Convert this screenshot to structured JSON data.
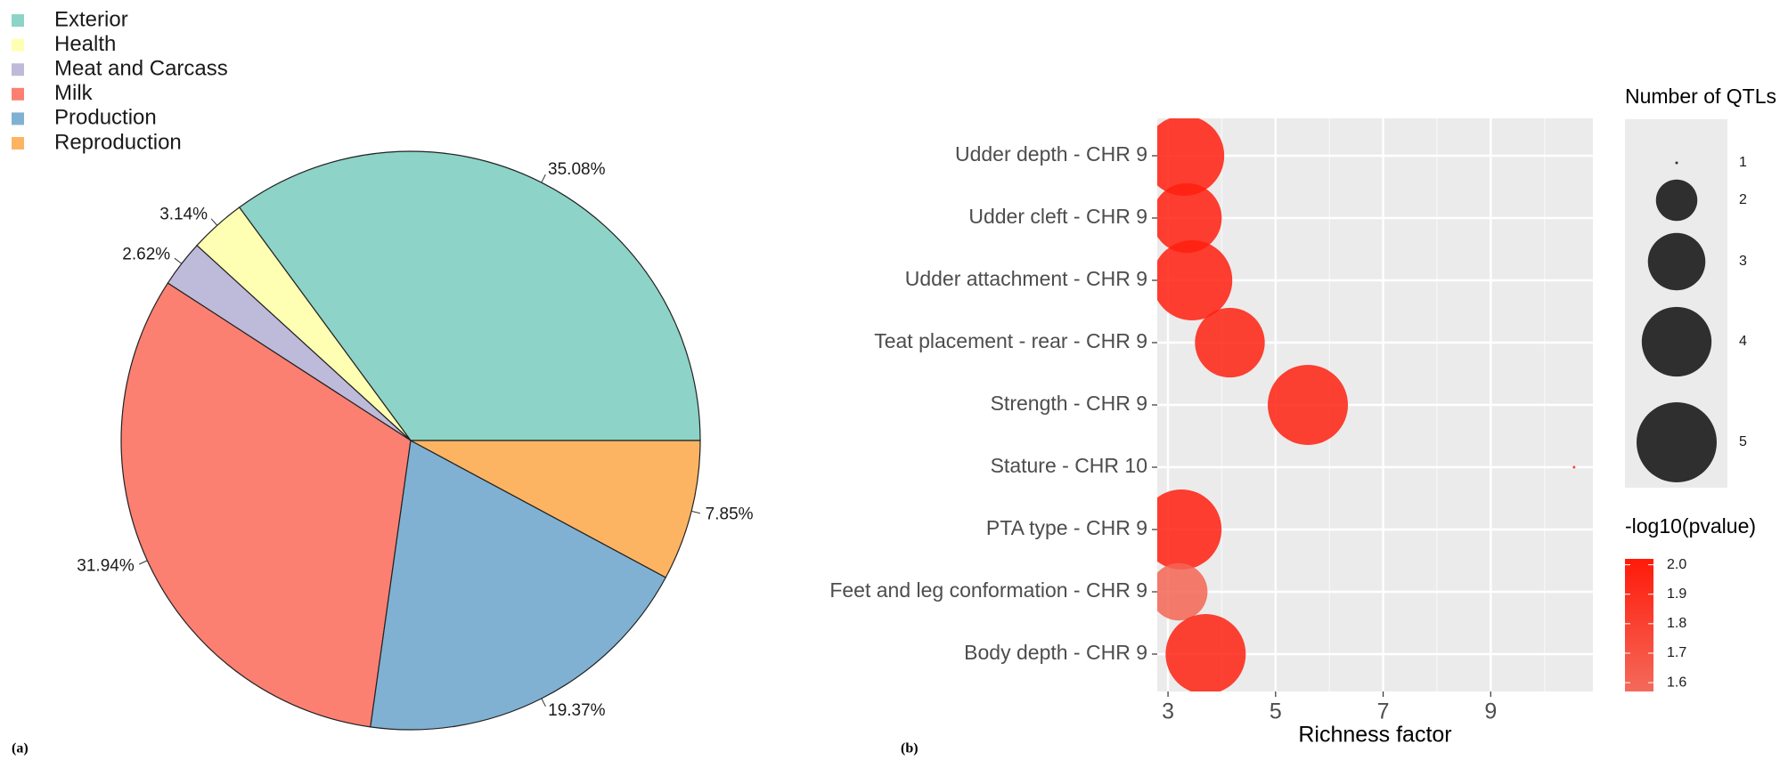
{
  "chart_data": [
    {
      "type": "pie",
      "panel_label": "(a)",
      "categories": [
        "Exterior",
        "Health",
        "Meat and Carcass",
        "Milk",
        "Production",
        "Reproduction"
      ],
      "values": [
        35.08,
        3.14,
        2.62,
        31.94,
        19.37,
        7.85
      ],
      "value_labels": [
        "35.08%",
        "3.14%",
        "2.62%",
        "31.94%",
        "19.37%",
        "7.85%"
      ],
      "colors": [
        "#8dd3c7",
        "#ffffb3",
        "#bebada",
        "#fb8072",
        "#80b1d3",
        "#fdb462"
      ]
    },
    {
      "type": "bubble",
      "panel_label": "(b)",
      "categories": [
        "Udder depth - CHR 9",
        "Udder cleft - CHR 9",
        "Udder attachment - CHR 9",
        "Teat placement - rear - CHR 9",
        "Strength - CHR 9",
        "Stature - CHR 10",
        "PTA type - CHR 9",
        "Feet and leg conformation - CHR 9",
        "Body depth - CHR 9"
      ],
      "x": [
        3.3,
        3.35,
        3.45,
        4.15,
        5.6,
        10.55,
        3.25,
        3.2,
        3.7
      ],
      "sizes": [
        5,
        4,
        5,
        4,
        5,
        1,
        5,
        3,
        5
      ],
      "color_values": [
        2.0,
        2.0,
        2.0,
        1.98,
        1.98,
        2.0,
        2.0,
        1.6,
        1.98
      ],
      "xlabel": "Richness factor",
      "xlim": [
        2.8,
        10.9
      ],
      "xticks": [
        3,
        5,
        7,
        9
      ],
      "grid": true,
      "size_legend_title": "Number of QTLs",
      "size_legend_values": [
        1,
        2,
        3,
        4,
        5
      ],
      "color_legend_title": "-log10(pvalue)",
      "color_lim": [
        1.57,
        2.02
      ],
      "color_ticks": [
        1.6,
        1.7,
        1.8,
        1.9,
        {
          "value": 2.0,
          "label": "2.0"
        }
      ],
      "colors": [
        "#f46a5a",
        "#ff1a0a"
      ]
    }
  ]
}
